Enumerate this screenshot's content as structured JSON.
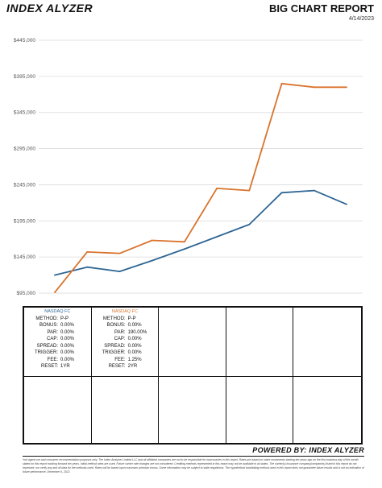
{
  "header": {
    "logo": "INDEX ALYZER",
    "title": "BIG CHART REPORT",
    "date": "4/14/2023"
  },
  "colors": {
    "nasdaq_fc_blue": "#2f6694",
    "nasdaq_fc_orange": "#d9732d"
  },
  "chart_data": {
    "type": "line",
    "title": "",
    "xlabel": "",
    "ylabel": "",
    "ylim": [
      95000,
      445000
    ],
    "yticks": [
      "$95,000",
      "$145,000",
      "$195,000",
      "$245,000",
      "$295,000",
      "$345,000",
      "$395,000",
      "$445,000"
    ],
    "ytick_values": [
      95000,
      145000,
      195000,
      245000,
      295000,
      345000,
      395000,
      445000
    ],
    "grid": true,
    "x": [
      0,
      1,
      2,
      3,
      4,
      5,
      6,
      7,
      8,
      9
    ],
    "series": [
      {
        "color": "#2f6694",
        "values": [
          120000,
          131000,
          125000,
          140000,
          156000,
          173000,
          190000,
          234000,
          237000,
          218000
        ]
      },
      {
        "color": "#d9732d",
        "values": [
          96000,
          152000,
          150000,
          168000,
          166000,
          240000,
          237000,
          385000,
          380000,
          380000
        ]
      }
    ]
  },
  "panels": [
    {
      "title": "NASDAQ FC",
      "title_color": "#2f6694",
      "rows": [
        {
          "k": "METHOD:",
          "v": "P-P"
        },
        {
          "k": "BONUS:",
          "v": "0.00%"
        },
        {
          "k": "PAR:",
          "v": "0.00%"
        },
        {
          "k": "CAP:",
          "v": "0.00%"
        },
        {
          "k": "SPREAD:",
          "v": "0.00%"
        },
        {
          "k": "TRIGGER:",
          "v": "0.00%"
        },
        {
          "k": "FEE:",
          "v": "0.00%"
        },
        {
          "k": "RESET:",
          "v": "1YR"
        }
      ]
    },
    {
      "title": "NASDAQ FC",
      "title_color": "#d9732d",
      "rows": [
        {
          "k": "METHOD:",
          "v": "P-P"
        },
        {
          "k": "BONUS:",
          "v": "0.00%"
        },
        {
          "k": "PAR:",
          "v": "190.00%"
        },
        {
          "k": "CAP:",
          "v": "0.00%"
        },
        {
          "k": "SPREAD:",
          "v": "0.00%"
        },
        {
          "k": "TRIGGER:",
          "v": "0.00%"
        },
        {
          "k": "FEE:",
          "v": "1.25%"
        },
        {
          "k": "RESET:",
          "v": "2YR"
        }
      ]
    }
  ],
  "footer": {
    "powered_by": "POWERED BY: INDEX ALYZER",
    "disclaimer": "*not agent use and consumer recommendation purposes only. The Index Analyzer Limited LLC and all affiliated companies are not to be responsible for inaccuracies in this report. Rates are based on index movements starting ten years ago on the first business day of the month stated on this report tracking forward ten years. Initial method rates are used. Future carrier rate changes are not considered. Crediting methods represented in this report may not be available in all states. The carrier(s) insurance company(companies) listed in this report do not represent, nor verify any and all data for the methods used. Rates will be based upon maximum premium bonus. Some information may be subject to state regulations. The hypothetical backdating method used in this report does not guarantee future results and is not an indication of future performance. December 6, 2022."
  }
}
